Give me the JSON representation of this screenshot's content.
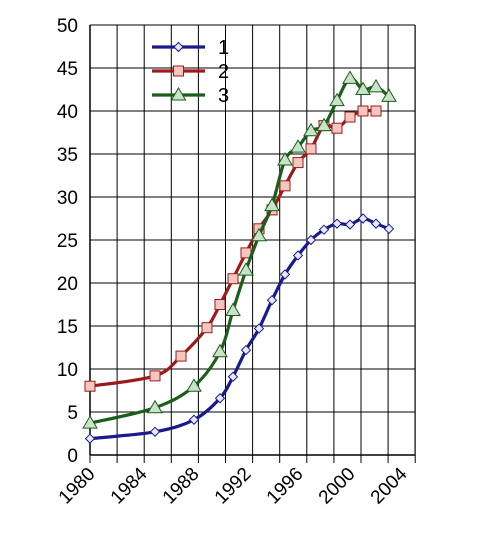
{
  "chart_data": {
    "type": "line",
    "title": "",
    "xlabel": "",
    "ylabel": "",
    "xlim": [
      1980,
      2005
    ],
    "ylim": [
      0,
      50
    ],
    "x_ticks": [
      1980,
      1984,
      1988,
      1992,
      1996,
      2000,
      2004
    ],
    "y_ticks": [
      0,
      5,
      10,
      15,
      20,
      25,
      30,
      35,
      40,
      45,
      50
    ],
    "grid": true,
    "legend_position": "top-left",
    "series": [
      {
        "name": "1",
        "color": "#1a1a8c",
        "marker": "diamond",
        "x": [
          1980,
          1985,
          1988,
          1990,
          1991,
          1992,
          1993,
          1994,
          1995,
          1996,
          1997,
          1998,
          1999,
          2000,
          2001,
          2002,
          2003,
          2004,
          2005
        ],
        "y": [
          1.9,
          2.7,
          4.1,
          6.6,
          9.1,
          12.2,
          14.7,
          18.0,
          21.0,
          23.2,
          25.0,
          26.2,
          26.9,
          26.8,
          27.5,
          26.9,
          26.3,
          null,
          null
        ]
      },
      {
        "name": "2",
        "color": "#9b1b1b",
        "marker": "square",
        "x": [
          1980,
          1985,
          1987,
          1989,
          1990,
          1991,
          1992,
          1993,
          1994,
          1995,
          1996,
          1997,
          1998,
          1999,
          2000,
          2001,
          2002,
          2003,
          2004
        ],
        "y": [
          8.0,
          9.2,
          11.5,
          14.8,
          17.5,
          20.5,
          23.5,
          26.3,
          28.5,
          31.3,
          34.0,
          35.6,
          38.3,
          38.0,
          39.3,
          40.0,
          40.0,
          null,
          null
        ]
      },
      {
        "name": "3",
        "color": "#1a5e1a",
        "marker": "triangle",
        "x": [
          1980,
          1985,
          1988,
          1990,
          1991,
          1992,
          1993,
          1994,
          1995,
          1996,
          1997,
          1998,
          1999,
          2000,
          2001,
          2002,
          2003,
          2004
        ],
        "y": [
          3.7,
          5.5,
          8.0,
          12.0,
          16.8,
          21.5,
          25.5,
          29.0,
          34.3,
          35.8,
          37.7,
          38.3,
          41.2,
          43.8,
          42.5,
          42.8,
          41.7,
          null
        ]
      }
    ]
  }
}
